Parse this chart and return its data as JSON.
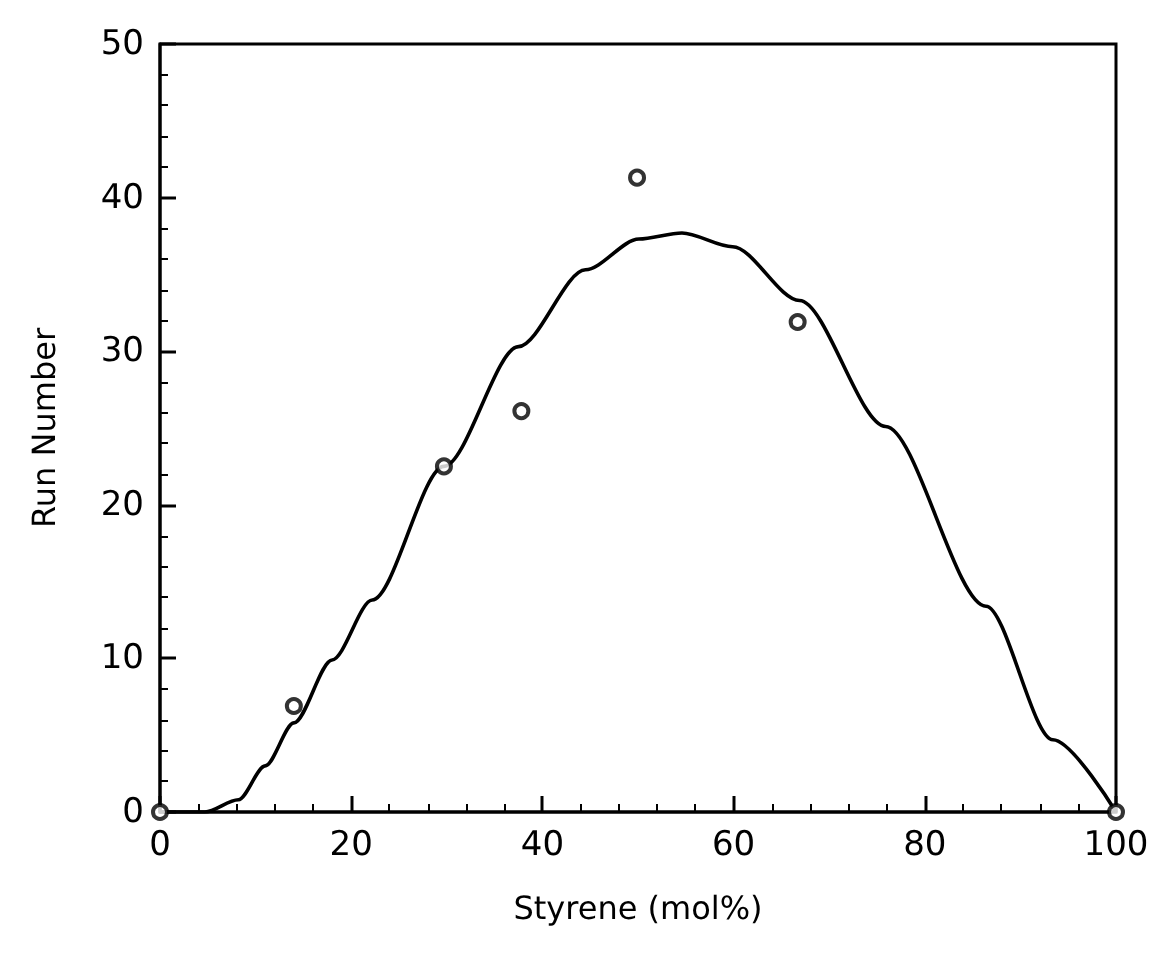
{
  "chart_data": {
    "type": "scatter",
    "xlabel": "Styrene (mol%)",
    "ylabel": "Run Number",
    "xlim": [
      0,
      100
    ],
    "xticks": [
      0,
      20,
      40,
      60,
      80,
      100
    ],
    "ylim": [
      0,
      50
    ],
    "yticks": [
      0,
      10,
      20,
      30,
      40,
      50
    ],
    "grid": false,
    "marker": "circle",
    "series": [
      {
        "color": "#000000",
        "x": [
          0,
          14.0,
          29.7,
          37.8,
          49.9,
          66.7,
          100
        ],
        "values": [
          0,
          6.9,
          22.5,
          26.1,
          41.3,
          31.9,
          0
        ]
      },
      {
        "type": "line",
        "marker": "none",
        "line_style": "solid",
        "color": "#000000",
        "x": [
          0,
          4.7,
          8.2,
          11,
          14,
          18,
          22.2,
          29.7,
          37.5,
          44.5,
          50.1,
          54.6,
          59.9,
          66.9,
          75.9,
          86.4,
          93.4,
          100
        ],
        "values": [
          0,
          0,
          0.8,
          3.0,
          5.8,
          9.9,
          13.8,
          22.5,
          30.3,
          35.3,
          37.3,
          37.7,
          36.8,
          33.3,
          25.1,
          13.4,
          4.7,
          0
        ]
      }
    ]
  }
}
